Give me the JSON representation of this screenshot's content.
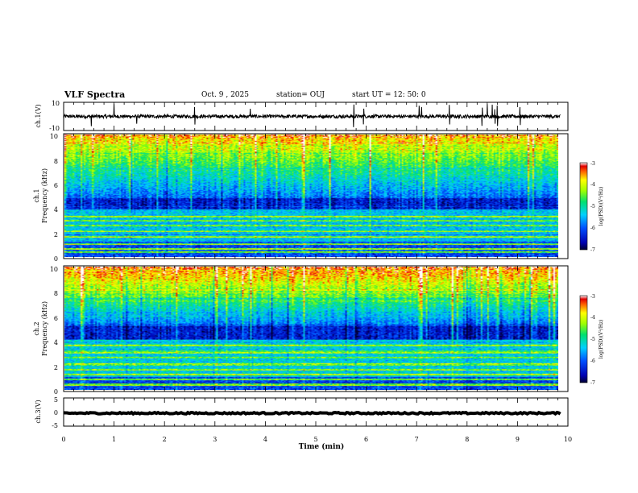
{
  "header": {
    "title": "VLF Spectra",
    "date": "Oct. 9 , 2025",
    "station": "station= OUJ",
    "start": "start  UT =   12: 50: 0"
  },
  "chart_data": [
    {
      "type": "line",
      "name": "waveform-ch1",
      "ylabel": "ch.1(V)",
      "ylim": [
        -10,
        10
      ],
      "yticks": [
        "10",
        "-10"
      ],
      "xlim": [
        0,
        10
      ],
      "level": 0,
      "amplitude": 1.2,
      "spikes": [
        0.55,
        1.0,
        1.45,
        2.6,
        3.7,
        5.75,
        5.95,
        7.05,
        7.1,
        7.65,
        8.3,
        8.4,
        8.5,
        8.55,
        8.6,
        9.05
      ]
    },
    {
      "type": "heatmap",
      "name": "spectrogram-ch1",
      "ylabel": "Frequency (kHz)",
      "channel_label": "ch.1",
      "xlim": [
        0,
        9.85
      ],
      "ylim": [
        0,
        10
      ],
      "yticks": [
        "0",
        "2",
        "4",
        "6",
        "8",
        "10"
      ],
      "colorbar": {
        "label": "log(PSD)(V²/Hz)",
        "range": [
          -7,
          -3
        ],
        "ticks": [
          "-3",
          "-4",
          "-5",
          "-6",
          "-7"
        ]
      },
      "lines_khz": [
        0.35,
        0.65,
        1.0,
        1.65,
        2.1,
        2.55,
        2.95,
        3.25
      ],
      "dark_band_khz": [
        3.9,
        4.8
      ],
      "mid_band_khz": [
        1.2,
        3.4
      ],
      "noise_level": -5.0,
      "top_level": -4.2
    },
    {
      "type": "heatmap",
      "name": "spectrogram-ch2",
      "ylabel": "Frequency (kHz)",
      "channel_label": "ch.2",
      "xlim": [
        0,
        9.85
      ],
      "ylim": [
        0,
        10
      ],
      "yticks": [
        "0",
        "2",
        "4",
        "6",
        "8",
        "10"
      ],
      "colorbar": {
        "label": "log(PSD)(V²/Hz)",
        "range": [
          -7,
          -3
        ],
        "ticks": [
          "-3",
          "-4",
          "-5",
          "-6",
          "-7"
        ]
      },
      "lines_khz": [
        0.4,
        0.8,
        1.25,
        1.6,
        2.05,
        2.6,
        3.05,
        3.6
      ],
      "dark_band_khz": [
        4.1,
        5.2
      ],
      "mid_band_khz": [
        1.0,
        3.8
      ],
      "noise_level": -4.9,
      "top_level": -3.9
    },
    {
      "type": "line",
      "name": "waveform-ch3",
      "ylabel": "ch.3(V)",
      "ylim": [
        -5,
        5
      ],
      "yticks": [
        "5",
        "0",
        "-5"
      ],
      "xlim": [
        0,
        10
      ],
      "level": -0.4,
      "amplitude": 0.25,
      "xlabel": "Time (min)",
      "xticks": [
        "0",
        "1",
        "2",
        "3",
        "4",
        "5",
        "6",
        "7",
        "8",
        "9",
        "10"
      ]
    }
  ],
  "colors": {
    "axis": "#000000",
    "trace": "#000000"
  }
}
